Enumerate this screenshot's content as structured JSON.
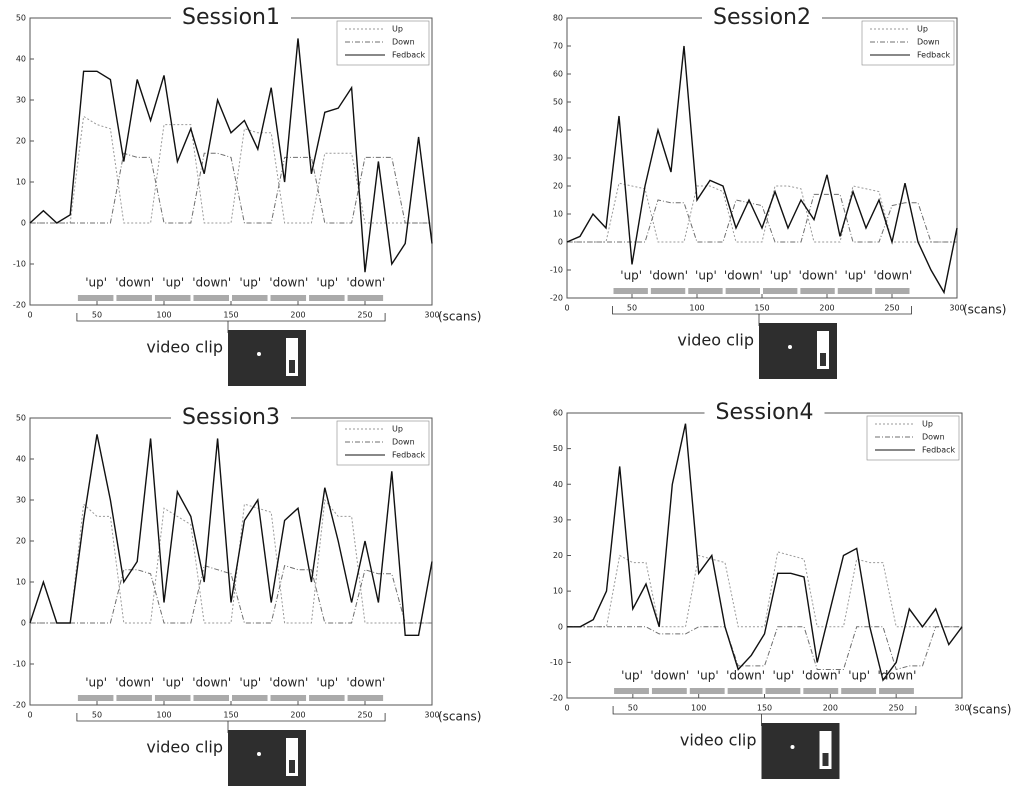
{
  "chart_data": [
    {
      "type": "line",
      "title": "Session1",
      "x_label": "(scans)",
      "annotation": "video clip",
      "legend": "upper right",
      "grid": false,
      "block_labels": [
        "'up'",
        "'down'",
        "'up'",
        "'down'",
        "'up'",
        "'down'",
        "'up'",
        "'down'"
      ],
      "x": [
        0,
        10,
        20,
        30,
        40,
        50,
        60,
        70,
        80,
        90,
        100,
        110,
        120,
        130,
        140,
        150,
        160,
        170,
        180,
        190,
        200,
        210,
        220,
        230,
        240,
        250,
        260,
        270,
        280,
        290,
        300
      ],
      "xlim": [
        0,
        300
      ],
      "xticks": [
        0,
        50,
        100,
        150,
        200,
        250,
        300
      ],
      "ylim": [
        -20,
        50
      ],
      "yticks": [
        -20,
        -10,
        0,
        10,
        20,
        30,
        40,
        50
      ],
      "series": [
        {
          "name": "Up",
          "color": "#9a9a9a",
          "values": [
            0,
            0,
            0,
            0,
            26,
            24,
            23,
            0,
            0,
            0,
            24,
            24,
            24,
            0,
            0,
            0,
            23,
            22,
            22,
            0,
            0,
            0,
            17,
            17,
            17,
            0,
            0,
            0,
            0,
            0,
            0
          ]
        },
        {
          "name": "Down",
          "color": "#6f6f6f",
          "values": [
            0,
            0,
            0,
            0,
            0,
            0,
            0,
            17,
            16,
            16,
            0,
            0,
            0,
            17,
            17,
            16,
            0,
            0,
            0,
            16,
            16,
            16,
            0,
            0,
            0,
            16,
            16,
            16,
            0,
            0,
            0
          ]
        },
        {
          "name": "Fedback",
          "color": "#111111",
          "values": [
            0,
            3,
            0,
            2,
            37,
            37,
            35,
            15,
            35,
            25,
            36,
            15,
            23,
            12,
            30,
            22,
            25,
            18,
            33,
            10,
            45,
            12,
            27,
            28,
            33,
            -12,
            15,
            -10,
            -5,
            21,
            -5
          ]
        }
      ]
    },
    {
      "type": "line",
      "title": "Session2",
      "x_label": "(scans)",
      "annotation": "video clip",
      "legend": "upper right",
      "grid": false,
      "block_labels": [
        "'up'",
        "'down'",
        "'up'",
        "'down'",
        "'up'",
        "'down'",
        "'up'",
        "'down'"
      ],
      "x": [
        0,
        10,
        20,
        30,
        40,
        50,
        60,
        70,
        80,
        90,
        100,
        110,
        120,
        130,
        140,
        150,
        160,
        170,
        180,
        190,
        200,
        210,
        220,
        230,
        240,
        250,
        260,
        270,
        280,
        290,
        300
      ],
      "xlim": [
        0,
        300
      ],
      "xticks": [
        0,
        50,
        100,
        150,
        200,
        250,
        300
      ],
      "ylim": [
        -20,
        80
      ],
      "yticks": [
        -20,
        -10,
        0,
        10,
        20,
        30,
        40,
        50,
        60,
        70,
        80
      ],
      "series": [
        {
          "name": "Up",
          "color": "#9a9a9a",
          "values": [
            0,
            0,
            0,
            0,
            21,
            20,
            19,
            0,
            0,
            0,
            20,
            20,
            18,
            0,
            0,
            0,
            20,
            20,
            19,
            0,
            0,
            0,
            20,
            19,
            18,
            0,
            0,
            0,
            0,
            0,
            0
          ]
        },
        {
          "name": "Down",
          "color": "#6f6f6f",
          "values": [
            0,
            0,
            0,
            0,
            0,
            0,
            0,
            15,
            14,
            14,
            0,
            0,
            0,
            15,
            14,
            13,
            0,
            0,
            0,
            17,
            17,
            17,
            0,
            0,
            0,
            13,
            14,
            14,
            0,
            0,
            0
          ]
        },
        {
          "name": "Fedback",
          "color": "#111111",
          "values": [
            0,
            2,
            10,
            5,
            45,
            -8,
            20,
            40,
            25,
            70,
            15,
            22,
            20,
            5,
            15,
            5,
            18,
            5,
            15,
            8,
            24,
            2,
            18,
            5,
            15,
            0,
            21,
            0,
            -10,
            -18,
            5
          ]
        }
      ]
    },
    {
      "type": "line",
      "title": "Session3",
      "x_label": "(scans)",
      "annotation": "video clip",
      "legend": "upper right",
      "grid": false,
      "block_labels": [
        "'up'",
        "'down'",
        "'up'",
        "'down'",
        "'up'",
        "'down'",
        "'up'",
        "'down'"
      ],
      "x": [
        0,
        10,
        20,
        30,
        40,
        50,
        60,
        70,
        80,
        90,
        100,
        110,
        120,
        130,
        140,
        150,
        160,
        170,
        180,
        190,
        200,
        210,
        220,
        230,
        240,
        250,
        260,
        270,
        280,
        290,
        300
      ],
      "xlim": [
        0,
        300
      ],
      "xticks": [
        0,
        50,
        100,
        150,
        200,
        250,
        300
      ],
      "ylim": [
        -20,
        50
      ],
      "yticks": [
        -20,
        -10,
        0,
        10,
        20,
        30,
        40,
        50
      ],
      "series": [
        {
          "name": "Up",
          "color": "#9a9a9a",
          "values": [
            0,
            0,
            0,
            0,
            29,
            26,
            26,
            0,
            0,
            0,
            28,
            26,
            24,
            0,
            0,
            0,
            29,
            28,
            27,
            0,
            0,
            0,
            30,
            26,
            26,
            0,
            0,
            0,
            0,
            0,
            0
          ]
        },
        {
          "name": "Down",
          "color": "#6f6f6f",
          "values": [
            0,
            0,
            0,
            0,
            0,
            0,
            0,
            13,
            13,
            12,
            0,
            0,
            0,
            14,
            13,
            12,
            0,
            0,
            0,
            14,
            13,
            13,
            0,
            0,
            0,
            13,
            12,
            12,
            0,
            0,
            0
          ]
        },
        {
          "name": "Fedback",
          "color": "#111111",
          "values": [
            0,
            10,
            0,
            0,
            25,
            46,
            30,
            10,
            15,
            45,
            5,
            32,
            26,
            10,
            45,
            5,
            25,
            30,
            5,
            25,
            28,
            10,
            33,
            20,
            5,
            20,
            5,
            37,
            -3,
            -3,
            15
          ]
        }
      ]
    },
    {
      "type": "line",
      "title": "Session4",
      "x_label": "(scans)",
      "annotation": "video clip",
      "legend": "upper right",
      "grid": false,
      "block_labels": [
        "'up'",
        "'down'",
        "'up'",
        "'down'",
        "'up'",
        "'down'",
        "'up'",
        "'down'"
      ],
      "x": [
        0,
        10,
        20,
        30,
        40,
        50,
        60,
        70,
        80,
        90,
        100,
        110,
        120,
        130,
        140,
        150,
        160,
        170,
        180,
        190,
        200,
        210,
        220,
        230,
        240,
        250,
        260,
        270,
        280,
        290,
        300
      ],
      "xlim": [
        0,
        300
      ],
      "xticks": [
        0,
        50,
        100,
        150,
        200,
        250,
        300
      ],
      "ylim": [
        -20,
        60
      ],
      "yticks": [
        -20,
        -10,
        0,
        10,
        20,
        30,
        40,
        50,
        60
      ],
      "series": [
        {
          "name": "Up",
          "color": "#9a9a9a",
          "values": [
            0,
            0,
            0,
            0,
            20,
            18,
            18,
            0,
            0,
            0,
            20,
            19,
            18,
            0,
            0,
            0,
            21,
            20,
            19,
            0,
            0,
            0,
            19,
            18,
            18,
            0,
            0,
            0,
            0,
            0,
            0
          ]
        },
        {
          "name": "Down",
          "color": "#6f6f6f",
          "values": [
            0,
            0,
            0,
            0,
            0,
            0,
            0,
            -2,
            -2,
            -2,
            0,
            0,
            0,
            -11,
            -11,
            -11,
            0,
            0,
            0,
            -12,
            -12,
            -12,
            0,
            0,
            0,
            -12,
            -11,
            -11,
            0,
            0,
            0
          ]
        },
        {
          "name": "Fedback",
          "color": "#111111",
          "values": [
            0,
            0,
            2,
            10,
            45,
            5,
            12,
            0,
            40,
            57,
            15,
            20,
            0,
            -12,
            -8,
            -2,
            15,
            15,
            14,
            -10,
            5,
            20,
            22,
            0,
            -15,
            -10,
            5,
            0,
            5,
            -5,
            0
          ]
        }
      ]
    }
  ]
}
